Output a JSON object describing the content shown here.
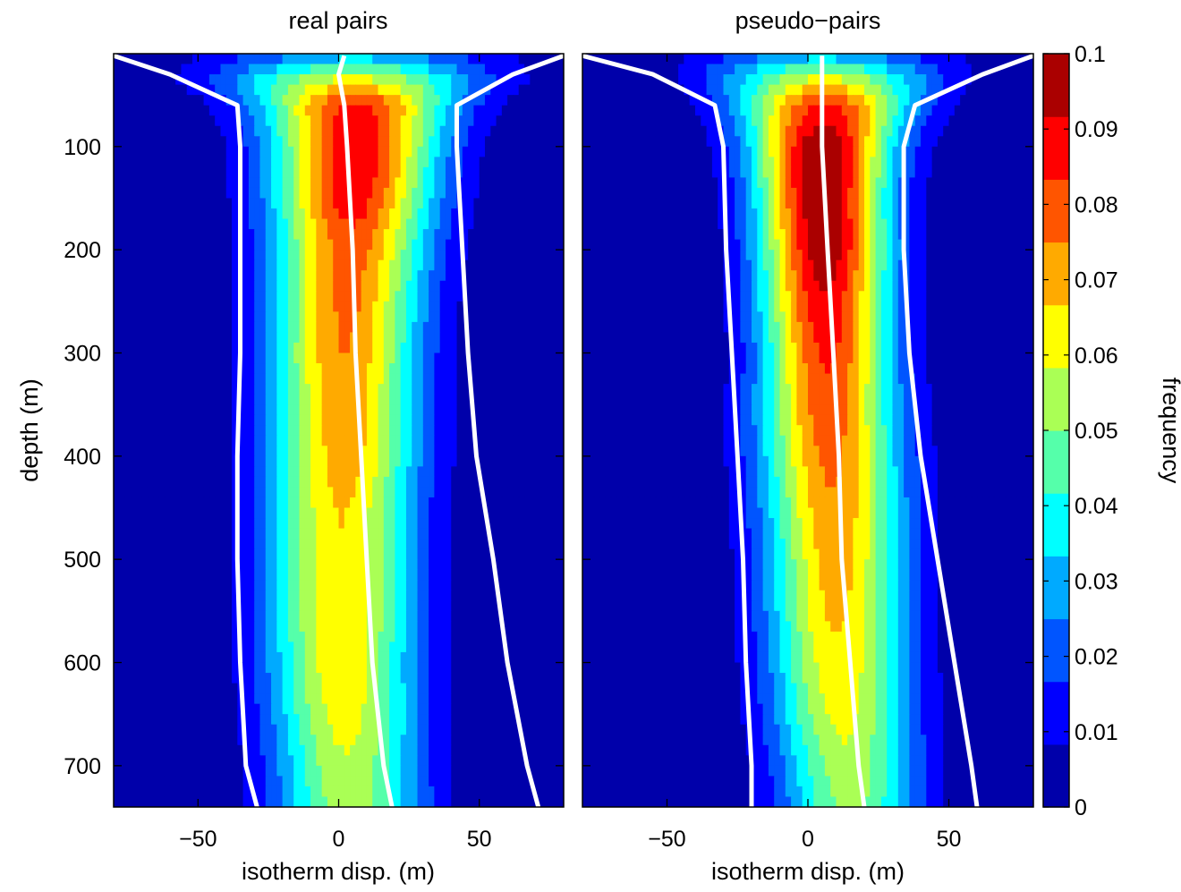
{
  "chart_data": [
    {
      "type": "heatmap",
      "title": "real pairs",
      "xlabel": "isotherm disp. (m)",
      "ylabel": "depth (m)",
      "xlim": [
        -80,
        80
      ],
      "ylim": [
        740,
        10
      ],
      "xticks": [
        -50,
        0,
        50
      ],
      "xtick_labels": [
        "−50",
        "0",
        "50"
      ],
      "yticks": [
        100,
        200,
        300,
        400,
        500,
        600,
        700
      ],
      "ytick_labels": [
        "100",
        "200",
        "300",
        "400",
        "500",
        "600",
        "700"
      ],
      "grid": false,
      "profile": {
        "depth": [
          12,
          35,
          60,
          100,
          150,
          200,
          250,
          300,
          350,
          400,
          450,
          500,
          550,
          600,
          650,
          700,
          740
        ],
        "center": [
          6,
          5,
          6,
          6,
          5,
          4,
          3,
          2,
          2,
          2,
          1,
          1,
          1,
          1,
          2,
          3,
          4
        ],
        "halfwidth": [
          55,
          50,
          38,
          33,
          32,
          31,
          30,
          30,
          30,
          30,
          30,
          30,
          30,
          30,
          30,
          30,
          30
        ],
        "peak": [
          0.03,
          0.06,
          0.086,
          0.091,
          0.088,
          0.079,
          0.077,
          0.075,
          0.073,
          0.071,
          0.067,
          0.066,
          0.066,
          0.065,
          0.062,
          0.057,
          0.055
        ]
      },
      "white_lines": {
        "depth": [
          12,
          30,
          60,
          100,
          200,
          300,
          400,
          500,
          600,
          700,
          740
        ],
        "median": [
          2,
          0,
          2,
          3,
          5,
          6,
          8,
          10,
          12,
          16,
          19
        ],
        "lower": [
          -80,
          -60,
          -36,
          -35,
          -35,
          -35,
          -36,
          -36,
          -35,
          -33,
          -29
        ],
        "upper": [
          80,
          62,
          42,
          42,
          44,
          46,
          49,
          55,
          60,
          67,
          71
        ]
      }
    },
    {
      "type": "heatmap",
      "title": "pseudo−pairs",
      "xlabel": "isotherm disp. (m)",
      "ylabel": "",
      "xlim": [
        -80,
        80
      ],
      "ylim": [
        740,
        10
      ],
      "xticks": [
        -50,
        0,
        50
      ],
      "xtick_labels": [
        "−50",
        "0",
        "50"
      ],
      "grid": false,
      "profile": {
        "depth": [
          12,
          35,
          60,
          100,
          150,
          200,
          250,
          300,
          350,
          400,
          450,
          500,
          550,
          600,
          650,
          700,
          740
        ],
        "center": [
          5,
          6,
          6,
          5,
          5,
          6,
          6,
          7,
          7,
          8,
          9,
          10,
          10,
          11,
          12,
          14,
          15
        ],
        "halfwidth": [
          48,
          42,
          34,
          28,
          26,
          26,
          26,
          26,
          27,
          28,
          28,
          28,
          28,
          28,
          28,
          28,
          28
        ],
        "peak": [
          0.03,
          0.06,
          0.085,
          0.099,
          0.1,
          0.097,
          0.09,
          0.085,
          0.081,
          0.077,
          0.074,
          0.071,
          0.068,
          0.065,
          0.061,
          0.056,
          0.052
        ]
      },
      "white_lines": {
        "depth": [
          12,
          30,
          60,
          100,
          200,
          300,
          400,
          500,
          600,
          700,
          740
        ],
        "median": [
          5,
          5,
          5,
          5,
          7,
          9,
          11,
          12,
          15,
          18,
          20
        ],
        "lower": [
          -80,
          -55,
          -33,
          -30,
          -29,
          -27,
          -25,
          -23,
          -22,
          -20,
          -20
        ],
        "upper": [
          80,
          62,
          38,
          34,
          34,
          36,
          40,
          46,
          52,
          58,
          60
        ]
      }
    },
    {
      "type": "colorbar",
      "label": "frequency",
      "range": [
        0,
        0.1
      ],
      "ticks": [
        0,
        0.01,
        0.02,
        0.03,
        0.04,
        0.05,
        0.06,
        0.07,
        0.08,
        0.09,
        0.1
      ],
      "tick_labels": [
        "0",
        "0.01",
        "0.02",
        "0.03",
        "0.04",
        "0.05",
        "0.06",
        "0.07",
        "0.08",
        "0.09",
        "0.1"
      ],
      "colormap": "jet",
      "levels": 12
    }
  ]
}
